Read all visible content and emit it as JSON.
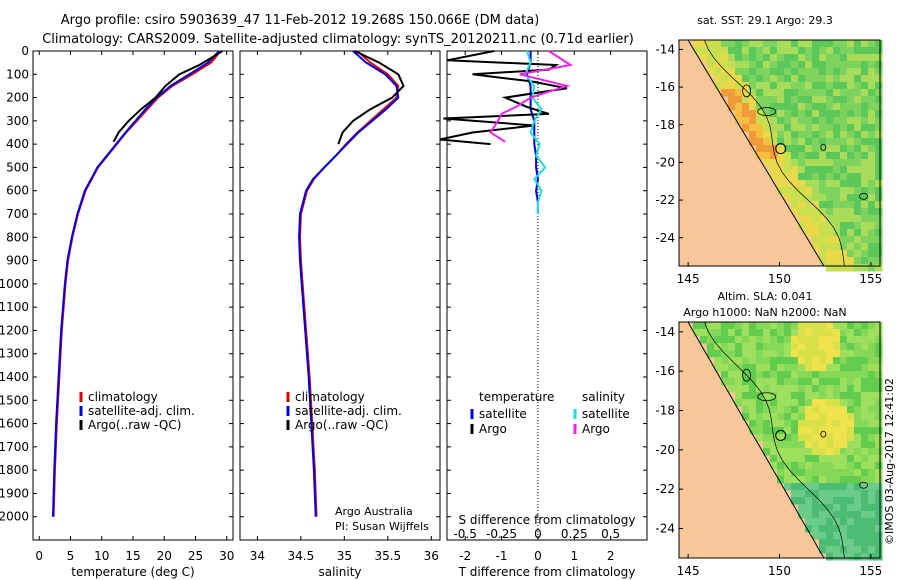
{
  "title": {
    "line1": "Argo profile: csiro 5903639_47 11-Feb-2012 19.268S 150.066E (DM data)",
    "line2": "Climatology: CARS2009. Satellite-adjusted climatology: synTS_20120211.nc (0.71d earlier)"
  },
  "colors": {
    "climatology": "#e00000",
    "satellite": "#0000dd",
    "argo": "#000000",
    "sal_satellite": "#22dddd",
    "sal_argo": "#ee22ee",
    "land": "#f7c79a"
  },
  "chart_data": [
    {
      "type": "line",
      "panel": "temperature",
      "xlabel": "temperature (deg C)",
      "xlim": [
        -1,
        31
      ],
      "xticks": [
        0,
        5,
        10,
        15,
        20,
        25,
        30
      ],
      "ylim": [
        0,
        2100
      ],
      "yticks": [
        0,
        100,
        200,
        300,
        400,
        500,
        600,
        700,
        800,
        900,
        1000,
        1100,
        1200,
        1300,
        1400,
        1500,
        1600,
        1700,
        1800,
        1900,
        2000
      ],
      "legend": [
        "climatology",
        "satellite-adj. clim.",
        "Argo(..raw -QC)"
      ],
      "series": [
        {
          "name": "climatology",
          "color": "#e00000",
          "depth": [
            0,
            50,
            100,
            150,
            200,
            250,
            300,
            350,
            400,
            450,
            500,
            600,
            700,
            800,
            900,
            1000,
            1200,
            1400,
            1600,
            1800,
            2000
          ],
          "values": [
            29,
            27.5,
            24.5,
            21.3,
            19,
            17.3,
            15.6,
            13.9,
            12.4,
            10.9,
            9.4,
            7.4,
            6.2,
            5.3,
            4.6,
            4.2,
            3.6,
            3.2,
            2.8,
            2.5,
            2.3
          ]
        },
        {
          "name": "satellite-adj. clim.",
          "color": "#0000dd",
          "depth": [
            0,
            50,
            100,
            150,
            200,
            250,
            300,
            350,
            400,
            450,
            500,
            600,
            700,
            800,
            900,
            1000,
            1200,
            1400,
            1600,
            1800,
            2000
          ],
          "values": [
            28.8,
            27,
            24,
            21,
            18.8,
            17,
            15.4,
            13.8,
            12.3,
            10.8,
            9.3,
            7.3,
            6.1,
            5.2,
            4.5,
            4.1,
            3.5,
            3.1,
            2.7,
            2.4,
            2.2
          ]
        },
        {
          "name": "Argo(..raw -QC)",
          "color": "#000000",
          "depth": [
            0,
            30,
            60,
            100,
            150,
            200,
            250,
            300,
            350,
            390
          ],
          "values": [
            29.3,
            27.5,
            25.6,
            22.4,
            20.2,
            18.6,
            16.3,
            14.3,
            12.7,
            11.9
          ]
        }
      ]
    },
    {
      "type": "line",
      "panel": "salinity",
      "xlabel": "salinity",
      "xlim": [
        33.8,
        36.1
      ],
      "xticks": [
        34,
        34.5,
        35,
        35.5,
        36
      ],
      "ylim": [
        0,
        2100
      ],
      "legend": [
        "climatology",
        "satellite-adj. clim.",
        "Argo(..raw -QC)"
      ],
      "annotations": [
        "Argo Australia",
        "PI: Susan Wijffels"
      ],
      "series": [
        {
          "name": "climatology",
          "color": "#e00000",
          "depth": [
            0,
            50,
            100,
            150,
            200,
            250,
            300,
            350,
            400,
            450,
            500,
            550,
            600,
            700,
            800,
            900,
            1000,
            1200,
            1400,
            1600,
            1800,
            2000
          ],
          "values": [
            35.15,
            35.3,
            35.5,
            35.62,
            35.6,
            35.45,
            35.3,
            35.15,
            35.02,
            34.9,
            34.77,
            34.65,
            34.57,
            34.5,
            34.49,
            34.5,
            34.52,
            34.56,
            34.6,
            34.63,
            34.66,
            34.68
          ]
        },
        {
          "name": "satellite-adj. clim.",
          "color": "#0000dd",
          "depth": [
            0,
            50,
            100,
            150,
            200,
            250,
            300,
            350,
            400,
            450,
            500,
            550,
            600,
            700,
            800,
            900,
            1000,
            1200,
            1400,
            1600,
            1800,
            2000
          ],
          "values": [
            35.1,
            35.25,
            35.47,
            35.6,
            35.62,
            35.48,
            35.32,
            35.16,
            35.03,
            34.9,
            34.77,
            34.64,
            34.56,
            34.49,
            34.48,
            34.49,
            34.51,
            34.55,
            34.59,
            34.62,
            34.65,
            34.67
          ]
        },
        {
          "name": "Argo(..raw -QC)",
          "color": "#000000",
          "depth": [
            0,
            50,
            100,
            150,
            200,
            250,
            300,
            350,
            400
          ],
          "values": [
            35.12,
            35.4,
            35.62,
            35.68,
            35.55,
            35.3,
            35.1,
            34.98,
            34.93
          ]
        }
      ]
    },
    {
      "type": "line",
      "panel": "difference",
      "xlabel": "T difference from climatology",
      "xlabel2": "S difference from climatology",
      "xlim": [
        -2.5,
        3
      ],
      "xticks": [
        -2,
        -1,
        0,
        1,
        2
      ],
      "xticks_s_labels": [
        "-0.5",
        "-0.25",
        "0",
        "0.25",
        "0.5"
      ],
      "xticks_s_positions": [
        -2,
        -1,
        0,
        1,
        2
      ],
      "ylim": [
        0,
        2100
      ],
      "legend": {
        "temperature": [
          "satellite",
          "Argo"
        ],
        "salinity": [
          "satellite",
          "Argo"
        ]
      },
      "legend_headers": [
        "temperature",
        "salinity"
      ],
      "series": [
        {
          "name": "T satellite",
          "color": "#0000dd",
          "depth": [
            0,
            50,
            100,
            150,
            200,
            250,
            300,
            350,
            400,
            450,
            500,
            550,
            600,
            650,
            700
          ],
          "values": [
            -0.2,
            -0.2,
            -0.3,
            -0.2,
            -0.2,
            -0.2,
            -0.1,
            -0.1,
            -0.1,
            -0.05,
            -0.05,
            0,
            -0.05,
            0,
            0
          ]
        },
        {
          "name": "T Argo",
          "color": "#000000",
          "depth": [
            0,
            40,
            60,
            80,
            100,
            130,
            160,
            200,
            240,
            270,
            290,
            320,
            350,
            380,
            400
          ],
          "values": [
            -1.2,
            -2.5,
            0.5,
            0.3,
            -1.8,
            -0.2,
            0.8,
            -0.9,
            -0.3,
            0.3,
            -2.6,
            -0.1,
            -1.8,
            -2.7,
            -1.3
          ]
        },
        {
          "name": "S satellite",
          "color": "#22dddd",
          "depth": [
            0,
            50,
            100,
            150,
            200,
            250,
            300,
            350,
            400,
            450,
            500,
            550,
            600,
            650,
            700
          ],
          "values": [
            -0.3,
            -0.2,
            -0.35,
            -0.1,
            -0.15,
            0.1,
            -0.1,
            -0.2,
            0.05,
            -0.05,
            0.2,
            -0.1,
            0.1,
            0,
            0
          ]
        },
        {
          "name": "S Argo",
          "color": "#ee22ee",
          "depth": [
            0,
            60,
            100,
            150,
            200,
            240,
            270,
            300,
            350,
            390
          ],
          "values": [
            0.3,
            0.9,
            -0.5,
            0.8,
            -0.2,
            -0.6,
            -1.0,
            -1.1,
            -1.3,
            -0.9
          ]
        }
      ]
    },
    {
      "type": "heatmap",
      "panel": "sst-map",
      "title": "sat. SST: 29.1  Argo: 29.3",
      "xlim": [
        144.5,
        155.5
      ],
      "ylim": [
        -25.5,
        -13.5
      ],
      "xticks": [
        145,
        150,
        155
      ],
      "yticks": [
        -14,
        -16,
        -18,
        -20,
        -22,
        -24
      ],
      "float_position": [
        150.066,
        -19.268
      ]
    },
    {
      "type": "heatmap",
      "panel": "sla-map",
      "title": "Altim. SLA: 0.041",
      "subtitle": "Argo h1000: NaN h2000: NaN",
      "xlim": [
        144.5,
        155.5
      ],
      "ylim": [
        -25.5,
        -13.5
      ],
      "xticks": [
        145,
        150,
        155
      ],
      "yticks": [
        -14,
        -16,
        -18,
        -20,
        -22,
        -24
      ],
      "float_position": [
        150.066,
        -19.268
      ]
    }
  ],
  "footer": {
    "credit": "©IMOS 03-Aug-2017 12:41:02"
  }
}
